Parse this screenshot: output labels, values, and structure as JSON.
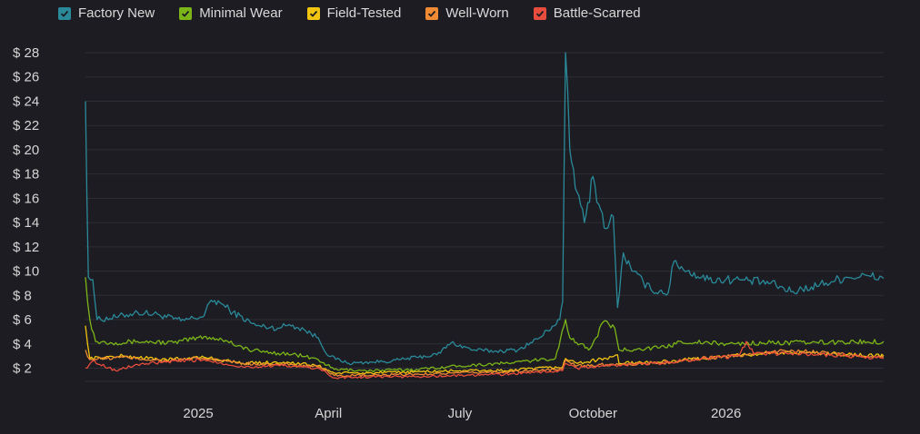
{
  "chart_data": {
    "type": "line",
    "title": "",
    "xlabel": "",
    "ylabel": "",
    "ylim": [
      2,
      28
    ],
    "y_ticks": [
      2,
      4,
      6,
      8,
      10,
      12,
      14,
      16,
      18,
      20,
      22,
      24,
      26,
      28
    ],
    "y_tick_prefix": "$ ",
    "x_ticks": [
      {
        "label": "2025",
        "date": "2025-01-01"
      },
      {
        "label": "April",
        "date": "2025-04-01"
      },
      {
        "label": "July",
        "date": "2025-07-01"
      },
      {
        "label": "October",
        "date": "2025-10-01"
      },
      {
        "label": "2026",
        "date": "2026-01-01"
      }
    ],
    "x_range": [
      "2024-10-15",
      "2026-04-20"
    ],
    "grid": true,
    "legend_position": "top-left",
    "series": [
      {
        "name": "Factory New",
        "color": "#2a8a9a",
        "points": [
          [
            "2024-10-15",
            24
          ],
          [
            "2024-10-17",
            9.5
          ],
          [
            "2024-10-20",
            9.3
          ],
          [
            "2024-10-23",
            6
          ],
          [
            "2024-11-05",
            6.2
          ],
          [
            "2024-11-20",
            6.6
          ],
          [
            "2024-12-05",
            6.4
          ],
          [
            "2024-12-20",
            5.9
          ],
          [
            "2025-01-05",
            6.3
          ],
          [
            "2025-01-10",
            7.6
          ],
          [
            "2025-01-16",
            7.4
          ],
          [
            "2025-01-25",
            6.6
          ],
          [
            "2025-02-10",
            5.5
          ],
          [
            "2025-02-25",
            5.3
          ],
          [
            "2025-03-05",
            5.6
          ],
          [
            "2025-03-15",
            5.2
          ],
          [
            "2025-03-25",
            4.5
          ],
          [
            "2025-04-01",
            3
          ],
          [
            "2025-04-15",
            2.4
          ],
          [
            "2025-05-01",
            2.5
          ],
          [
            "2025-05-15",
            2.6
          ],
          [
            "2025-06-01",
            2.9
          ],
          [
            "2025-06-15",
            3.1
          ],
          [
            "2025-06-25",
            4.1
          ],
          [
            "2025-07-10",
            3.5
          ],
          [
            "2025-07-25",
            3.4
          ],
          [
            "2025-08-10",
            3.5
          ],
          [
            "2025-08-25",
            4.5
          ],
          [
            "2025-09-08",
            6
          ],
          [
            "2025-09-10",
            7.5
          ],
          [
            "2025-09-12",
            28
          ],
          [
            "2025-09-15",
            20
          ],
          [
            "2025-09-20",
            16.5
          ],
          [
            "2025-09-25",
            14
          ],
          [
            "2025-10-01",
            17.8
          ],
          [
            "2025-10-05",
            15.5
          ],
          [
            "2025-10-10",
            13.5
          ],
          [
            "2025-10-15",
            14.5
          ],
          [
            "2025-10-18",
            7
          ],
          [
            "2025-10-22",
            11.5
          ],
          [
            "2025-10-28",
            10
          ],
          [
            "2025-11-10",
            8.5
          ],
          [
            "2025-11-22",
            8.2
          ],
          [
            "2025-11-26",
            10.8
          ],
          [
            "2025-12-05",
            10
          ],
          [
            "2025-12-20",
            9.3
          ],
          [
            "2026-01-10",
            9.3
          ],
          [
            "2026-02-01",
            9
          ],
          [
            "2026-02-15",
            8.3
          ],
          [
            "2026-03-01",
            8.7
          ],
          [
            "2026-03-25",
            9.5
          ],
          [
            "2026-04-10",
            9.6
          ],
          [
            "2026-04-20",
            9.4
          ]
        ]
      },
      {
        "name": "Minimal Wear",
        "color": "#7cb518",
        "points": [
          [
            "2024-10-15",
            9.5
          ],
          [
            "2024-10-18",
            6
          ],
          [
            "2024-10-22",
            4.2
          ],
          [
            "2024-11-05",
            4.1
          ],
          [
            "2024-11-20",
            4.2
          ],
          [
            "2024-12-15",
            4.1
          ],
          [
            "2025-01-05",
            4.6
          ],
          [
            "2025-01-20",
            4.3
          ],
          [
            "2025-02-05",
            3.5
          ],
          [
            "2025-02-20",
            3.3
          ],
          [
            "2025-03-10",
            3.1
          ],
          [
            "2025-03-25",
            2.7
          ],
          [
            "2025-04-05",
            1.9
          ],
          [
            "2025-05-01",
            1.8
          ],
          [
            "2025-06-01",
            1.9
          ],
          [
            "2025-07-01",
            2.2
          ],
          [
            "2025-08-01",
            2.4
          ],
          [
            "2025-09-05",
            2.8
          ],
          [
            "2025-09-12",
            6
          ],
          [
            "2025-09-15",
            4.5
          ],
          [
            "2025-09-22",
            4
          ],
          [
            "2025-09-28",
            3.5
          ],
          [
            "2025-10-03",
            4.5
          ],
          [
            "2025-10-08",
            5.8
          ],
          [
            "2025-10-16",
            5.3
          ],
          [
            "2025-10-19",
            3.5
          ],
          [
            "2025-11-01",
            3.6
          ],
          [
            "2025-11-20",
            3.7
          ],
          [
            "2025-12-01",
            4.2
          ],
          [
            "2026-01-01",
            4
          ],
          [
            "2026-02-01",
            4.1
          ],
          [
            "2026-03-01",
            4.1
          ],
          [
            "2026-04-20",
            4.2
          ]
        ]
      },
      {
        "name": "Field-Tested",
        "color": "#f1c40f",
        "points": [
          [
            "2024-10-15",
            5.5
          ],
          [
            "2024-10-18",
            2.8
          ],
          [
            "2024-11-10",
            3
          ],
          [
            "2024-12-10",
            2.7
          ],
          [
            "2025-01-05",
            2.9
          ],
          [
            "2025-02-01",
            2.4
          ],
          [
            "2025-03-01",
            2.5
          ],
          [
            "2025-03-25",
            2.2
          ],
          [
            "2025-04-05",
            1.6
          ],
          [
            "2025-05-01",
            1.6
          ],
          [
            "2025-06-01",
            1.7
          ],
          [
            "2025-07-01",
            1.8
          ],
          [
            "2025-08-01",
            1.8
          ],
          [
            "2025-09-10",
            2.1
          ],
          [
            "2025-09-12",
            2.8
          ],
          [
            "2025-09-20",
            2.4
          ],
          [
            "2025-10-10",
            2.8
          ],
          [
            "2025-10-18",
            3.1
          ],
          [
            "2025-10-19",
            2.4
          ],
          [
            "2025-11-15",
            2.5
          ],
          [
            "2025-12-15",
            2.8
          ],
          [
            "2026-01-15",
            3.1
          ],
          [
            "2026-02-15",
            3.3
          ],
          [
            "2026-03-15",
            3.2
          ],
          [
            "2026-04-20",
            3
          ]
        ]
      },
      {
        "name": "Well-Worn",
        "color": "#f08a33",
        "points": [
          [
            "2024-10-15",
            3.5
          ],
          [
            "2024-10-18",
            2.7
          ],
          [
            "2024-11-10",
            2.9
          ],
          [
            "2024-12-10",
            2.6
          ],
          [
            "2025-01-05",
            2.8
          ],
          [
            "2025-02-01",
            2.4
          ],
          [
            "2025-03-01",
            2.3
          ],
          [
            "2025-03-25",
            2.1
          ],
          [
            "2025-04-05",
            1.4
          ],
          [
            "2025-05-01",
            1.4
          ],
          [
            "2025-06-01",
            1.5
          ],
          [
            "2025-07-01",
            1.6
          ],
          [
            "2025-08-01",
            1.7
          ],
          [
            "2025-09-10",
            1.9
          ],
          [
            "2025-09-12",
            2.7
          ],
          [
            "2025-09-20",
            2.2
          ],
          [
            "2025-10-10",
            2.3
          ],
          [
            "2025-11-15",
            2.4
          ],
          [
            "2025-12-15",
            2.8
          ],
          [
            "2026-01-15",
            3.1
          ],
          [
            "2026-02-15",
            3.5
          ],
          [
            "2026-03-15",
            3.2
          ],
          [
            "2026-04-20",
            2.9
          ]
        ]
      },
      {
        "name": "Battle-Scarred",
        "color": "#e74c3c",
        "points": [
          [
            "2024-10-15",
            2
          ],
          [
            "2024-10-20",
            2.6
          ],
          [
            "2024-11-05",
            1.8
          ],
          [
            "2024-11-20",
            2.3
          ],
          [
            "2024-12-10",
            2.5
          ],
          [
            "2025-01-05",
            2.7
          ],
          [
            "2025-02-01",
            2.1
          ],
          [
            "2025-03-01",
            2.2
          ],
          [
            "2025-03-25",
            2
          ],
          [
            "2025-04-05",
            1.2
          ],
          [
            "2025-05-01",
            1.3
          ],
          [
            "2025-06-01",
            1.3
          ],
          [
            "2025-07-01",
            1.4
          ],
          [
            "2025-08-01",
            1.5
          ],
          [
            "2025-09-10",
            1.8
          ],
          [
            "2025-09-12",
            2.4
          ],
          [
            "2025-09-20",
            2
          ],
          [
            "2025-10-10",
            2.2
          ],
          [
            "2025-11-15",
            2.4
          ],
          [
            "2025-12-15",
            2.8
          ],
          [
            "2026-01-10",
            3
          ],
          [
            "2026-01-15",
            4.2
          ],
          [
            "2026-01-20",
            3.2
          ],
          [
            "2026-02-15",
            3.2
          ],
          [
            "2026-03-15",
            3.1
          ],
          [
            "2026-04-20",
            2.8
          ]
        ]
      }
    ]
  }
}
